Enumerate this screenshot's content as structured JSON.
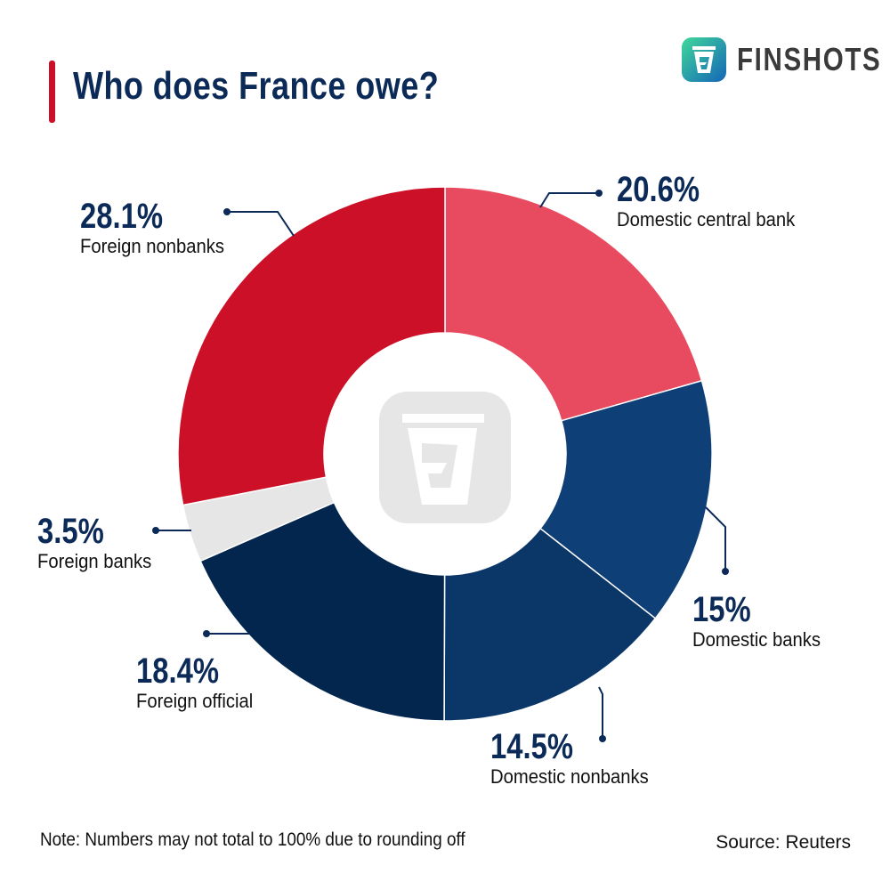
{
  "brand": {
    "name": "FINSHOTS",
    "logo_icon": "finshots-cup-logo"
  },
  "title": "Who does France owe?",
  "note": "Note: Numbers may not total to 100% due to rounding off",
  "source": "Source: Reuters",
  "chart_data": {
    "type": "pie",
    "variant": "donut",
    "title": "Who does France owe?",
    "start": "12 o'clock, clockwise",
    "slices": [
      {
        "label": "Domestic central bank",
        "value": 20.6,
        "display": "20.6%",
        "color": "#E84A60"
      },
      {
        "label": "Domestic banks",
        "value": 15,
        "display": "15%",
        "color": "#0E3F77"
      },
      {
        "label": "Domestic nonbanks",
        "value": 14.5,
        "display": "14.5%",
        "color": "#0B3668"
      },
      {
        "label": "Foreign official",
        "value": 18.4,
        "display": "18.4%",
        "color": "#03264F"
      },
      {
        "label": "Foreign banks",
        "value": 3.5,
        "display": "3.5%",
        "color": "#E6E6E6"
      },
      {
        "label": "Foreign nonbanks",
        "value": 28.1,
        "display": "28.1%",
        "color": "#CC1027"
      }
    ]
  },
  "colors": {
    "title": "#0B2A57",
    "accent": "#CC1027",
    "leader": "#0B2A57"
  }
}
